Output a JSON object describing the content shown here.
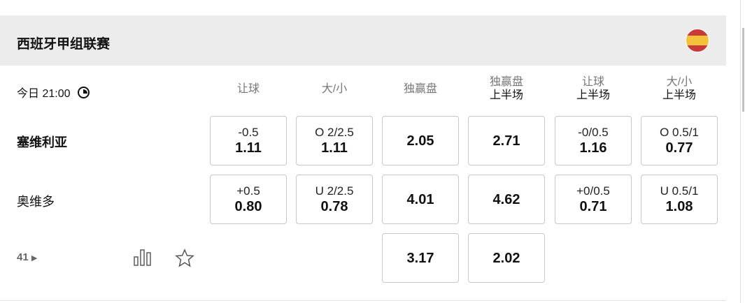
{
  "league": {
    "title": "西班牙甲组联赛",
    "flag": "spain-flag-icon"
  },
  "match": {
    "time": "今日 21:00",
    "home": "塞维利亚",
    "away": "奥维多",
    "more_count": "41"
  },
  "columns": [
    {
      "top": "让球",
      "sub": ""
    },
    {
      "top": "大/小",
      "sub": ""
    },
    {
      "top": "独赢盘",
      "sub": ""
    },
    {
      "top": "独赢盘",
      "sub": "上半场"
    },
    {
      "top": "让球",
      "sub": "上半场"
    },
    {
      "top": "大/小",
      "sub": "上半场"
    }
  ],
  "odds": {
    "home": [
      {
        "l": "-0.5",
        "v": "1.11"
      },
      {
        "l": "O 2/2.5",
        "v": "1.11"
      },
      {
        "l": "",
        "v": "2.05"
      },
      {
        "l": "",
        "v": "2.71"
      },
      {
        "l": "-0/0.5",
        "v": "1.16"
      },
      {
        "l": "O 0.5/1",
        "v": "0.77"
      }
    ],
    "away": [
      {
        "l": "+0.5",
        "v": "0.80"
      },
      {
        "l": "U 2/2.5",
        "v": "0.78"
      },
      {
        "l": "",
        "v": "4.01"
      },
      {
        "l": "",
        "v": "4.62"
      },
      {
        "l": "+0/0.5",
        "v": "0.71"
      },
      {
        "l": "U 0.5/1",
        "v": "1.08"
      }
    ],
    "draw": [
      {
        "l": "",
        "v": "3.17"
      },
      {
        "l": "",
        "v": "2.02"
      }
    ]
  }
}
